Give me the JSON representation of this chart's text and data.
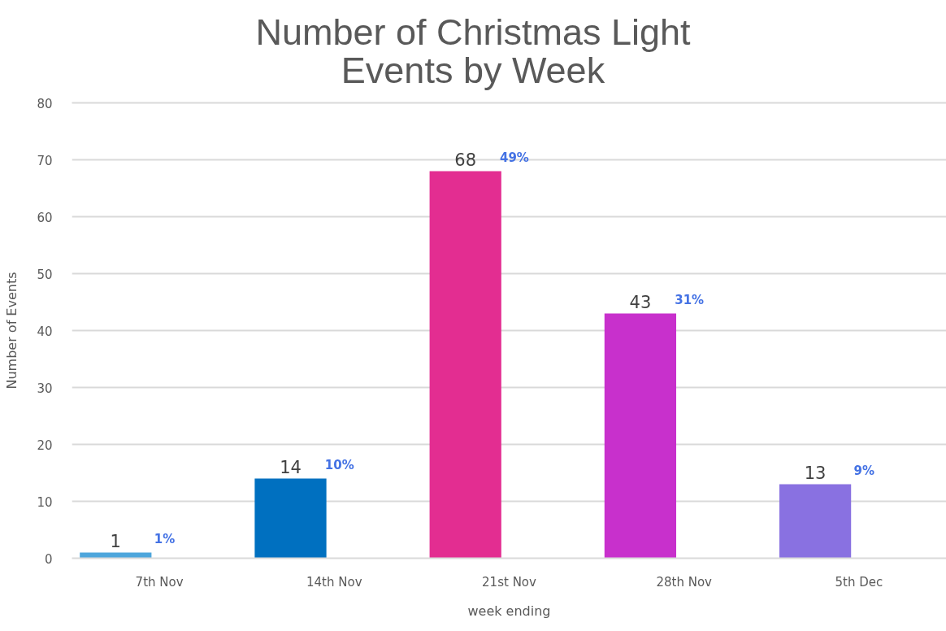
{
  "chart_data": {
    "type": "bar",
    "title": "Number of Christmas Light Events by Week",
    "xlabel": "week ending",
    "ylabel": "Number of Events",
    "categories": [
      "7th Nov",
      "14th Nov",
      "21st Nov",
      "28th Nov",
      "5th Dec"
    ],
    "values": [
      1,
      14,
      68,
      43,
      13
    ],
    "colors": [
      "#4ea6dc",
      "#0070c0",
      "#e32d91",
      "#c830cc",
      "#8971e1"
    ],
    "data_labels": true,
    "annotations": [
      "1%",
      "10%",
      "49%",
      "31%",
      "9%"
    ],
    "ylim": [
      0,
      80
    ],
    "yticks": [
      0,
      10,
      20,
      30,
      40,
      50,
      60,
      70,
      80
    ],
    "grid": "y"
  }
}
